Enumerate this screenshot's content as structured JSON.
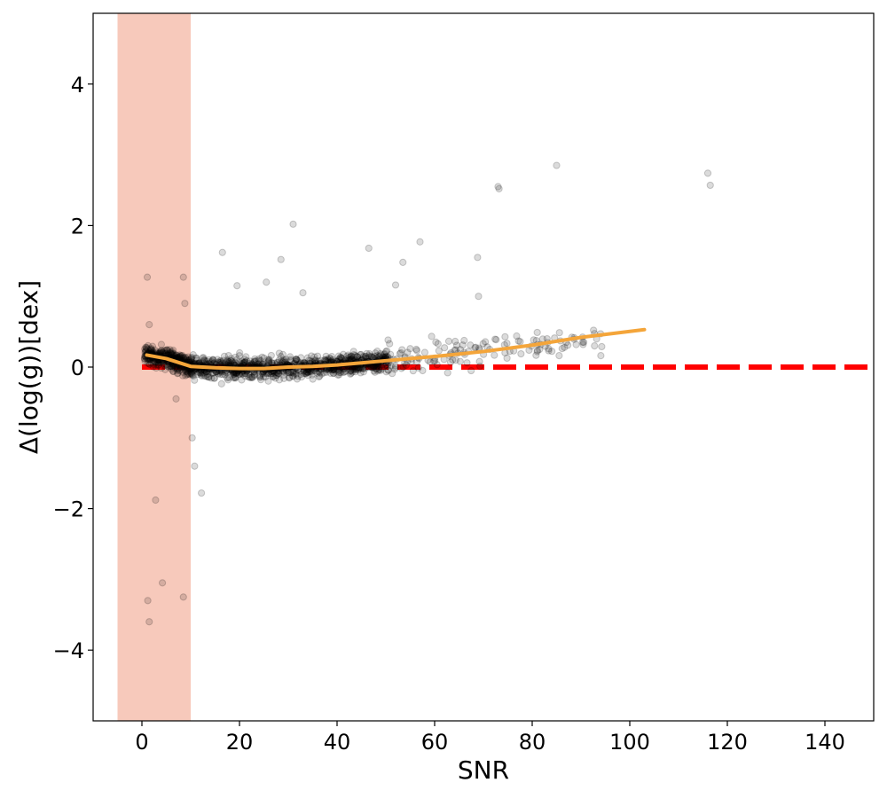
{
  "chart_data": {
    "type": "scatter",
    "xlabel": "SNR",
    "ylabel": "Δ(log(g))[dex]",
    "xlim": [
      -10,
      150
    ],
    "ylim": [
      -5,
      5
    ],
    "x_ticks": [
      0,
      20,
      40,
      60,
      80,
      100,
      120,
      140
    ],
    "x_tick_labels": [
      "0",
      "20",
      "40",
      "60",
      "80",
      "100",
      "120",
      "140"
    ],
    "y_ticks": [
      -4,
      -2,
      0,
      2,
      4
    ],
    "y_tick_labels": [
      "−4",
      "−2",
      "0",
      "2",
      "4"
    ],
    "grid": false,
    "shaded_region": {
      "x_from": -5,
      "x_to": 10,
      "color": "#f7c9bb"
    },
    "reference_line": {
      "y": 0,
      "style": "dashed",
      "color": "#ff0000"
    },
    "trend_line": {
      "color": "#f4a53a",
      "x": [
        1,
        5,
        10,
        15,
        20,
        25,
        30,
        35,
        40,
        45,
        50,
        60,
        70,
        80,
        90,
        103
      ],
      "y": [
        0.17,
        0.12,
        0.01,
        -0.01,
        -0.02,
        -0.02,
        0.0,
        0.01,
        0.03,
        0.06,
        0.09,
        0.15,
        0.22,
        0.31,
        0.42,
        0.53
      ]
    },
    "outliers": {
      "x": [
        1.2,
        1.5,
        1.1,
        2.8,
        4.2,
        8.5,
        10.3,
        10.8,
        12.2,
        7,
        8.5,
        1.5,
        8.8,
        31,
        46.5,
        53.5,
        57,
        52,
        68.8,
        69,
        73,
        73.2,
        85,
        116,
        116.5,
        19.5,
        25.5,
        28.5,
        16.5,
        33
      ],
      "y": [
        -3.3,
        -3.6,
        1.27,
        -1.88,
        -3.05,
        -3.25,
        -1.0,
        -1.4,
        -1.78,
        -0.45,
        1.27,
        0.6,
        0.9,
        2.02,
        1.68,
        1.48,
        1.77,
        1.16,
        1.55,
        1.0,
        2.55,
        2.52,
        2.85,
        2.74,
        2.57,
        1.15,
        1.2,
        1.52,
        1.62,
        1.05
      ]
    },
    "scatter_style": {
      "color": "#000000",
      "opacity": 0.14
    },
    "series": []
  }
}
